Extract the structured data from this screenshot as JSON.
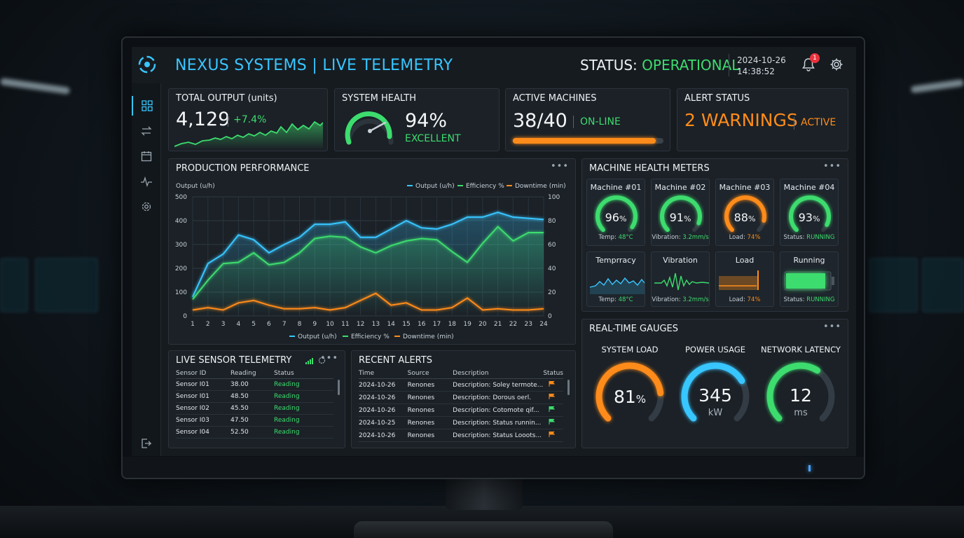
{
  "header": {
    "title": "NEXUS SYSTEMS | LIVE TELEMETRY",
    "status_label": "STATUS:",
    "status_value": "OPERATIONAL",
    "date": "2024-10-26",
    "time": "14:38:52",
    "notification_count": "1"
  },
  "colors": {
    "accent": "#38c6ff",
    "ok": "#3ddc6e",
    "warn": "#ff8c1a"
  },
  "sidebar": {
    "items": [
      {
        "icon": "dashboard-grid-icon"
      },
      {
        "icon": "transfer-arrows-icon"
      },
      {
        "icon": "calendar-icon"
      },
      {
        "icon": "pulse-icon"
      },
      {
        "icon": "settings-gear-icon"
      },
      {
        "icon": "logout-icon"
      }
    ]
  },
  "kpis": {
    "total_output": {
      "title": "TOTAL OUTPUT (units)",
      "value": "4,129",
      "delta": "+7.4%"
    },
    "system_health": {
      "title": "SYSTEM HEALTH",
      "value": "94%",
      "rating": "EXCELLENT",
      "level": 0.94
    },
    "active_machines": {
      "title": "ACTIVE MACHINES",
      "value": "38/40",
      "state": "ON-LINE",
      "progress": 0.95
    },
    "alert_status": {
      "title": "ALERT STATUS",
      "value": "2 WARNINGS",
      "state": "ACTIVE"
    }
  },
  "production": {
    "title": "PRODUCTION PERFORMANCE",
    "chart_data": {
      "type": "line",
      "ylabel": "Output (u/h)",
      "x": [
        1,
        2,
        3,
        4,
        5,
        6,
        7,
        8,
        9,
        10,
        11,
        12,
        13,
        14,
        15,
        16,
        17,
        18,
        19,
        20,
        21,
        22,
        23,
        24
      ],
      "ylim": [
        0,
        500
      ],
      "y2lim": [
        0,
        100
      ],
      "yticks": [
        "0",
        "100",
        "200",
        "300",
        "400",
        "500"
      ],
      "y2ticks": [
        "0",
        "20",
        "40",
        "60",
        "80",
        "100"
      ],
      "legend_position": "top-right",
      "series": [
        {
          "name": "Output (u/h)",
          "color": "#38c6ff",
          "axis": "left",
          "values": [
            80,
            220,
            260,
            340,
            320,
            265,
            300,
            330,
            385,
            385,
            395,
            330,
            330,
            365,
            400,
            370,
            365,
            385,
            415,
            415,
            435,
            415,
            410,
            405
          ]
        },
        {
          "name": "Efficiency %",
          "color": "#3ddc6e",
          "axis": "left",
          "values": [
            70,
            150,
            220,
            225,
            265,
            215,
            225,
            265,
            325,
            335,
            330,
            290,
            265,
            295,
            315,
            325,
            320,
            270,
            225,
            305,
            375,
            315,
            350,
            350
          ]
        },
        {
          "name": "Downtime (min)",
          "color": "#ff8c1a",
          "axis": "left",
          "values": [
            25,
            35,
            25,
            55,
            65,
            45,
            30,
            30,
            35,
            25,
            35,
            65,
            95,
            45,
            55,
            25,
            25,
            35,
            75,
            25,
            30,
            25,
            25,
            30
          ]
        }
      ]
    }
  },
  "machine_health": {
    "title": "MACHINE HEALTH METERS",
    "machines": [
      {
        "name": "Machine #01",
        "value": "96",
        "unit": "%",
        "level": 0.96,
        "color": "#3ddc6e",
        "detail_label": "Temp:",
        "detail_value": "48°C"
      },
      {
        "name": "Machine #02",
        "value": "91",
        "unit": "%",
        "level": 0.91,
        "color": "#3ddc6e",
        "detail_label": "Vibration:",
        "detail_value": "3.2mm/s"
      },
      {
        "name": "Machine #03",
        "value": "88",
        "unit": "%",
        "level": 0.88,
        "color": "#ff8c1a",
        "detail_label": "Load:",
        "detail_value": "74%"
      },
      {
        "name": "Machine #04",
        "value": "93",
        "unit": "%",
        "level": 0.93,
        "color": "#3ddc6e",
        "detail_label": "Status:",
        "detail_value": "RUNNING"
      }
    ],
    "sensors": [
      {
        "name": "Temprracy",
        "detail_label": "Temp:",
        "detail_value": "48°C"
      },
      {
        "name": "Vibration",
        "detail_label": "Vibration:",
        "detail_value": "3.2mm/s"
      },
      {
        "name": "Load",
        "detail_label": "Load:",
        "detail_value": "74%"
      },
      {
        "name": "Running",
        "detail_label": "Status:",
        "detail_value": "RUNNING"
      }
    ]
  },
  "sensor_telemetry": {
    "title": "LIVE SENSOR TELEMETRY",
    "columns": [
      "Sensor ID",
      "Reading",
      "Status"
    ],
    "rows": [
      [
        "Sensor I01",
        "38.00",
        "Reading"
      ],
      [
        "Sensor I01",
        "48.50",
        "Reading"
      ],
      [
        "Sensor I02",
        "45.50",
        "Reading"
      ],
      [
        "Sensor I03",
        "47.50",
        "Reading"
      ],
      [
        "Sensor I04",
        "52.50",
        "Reading"
      ]
    ]
  },
  "alerts": {
    "title": "RECENT ALERTS",
    "columns": [
      "Time",
      "Source",
      "Description",
      "Status"
    ],
    "rows": [
      {
        "time": "2024-10-26",
        "source": "Renones",
        "description": "Description: Soley termote...",
        "flag": "#ff8c1a"
      },
      {
        "time": "2024-10-26",
        "source": "Renones",
        "description": "Description: Dorous oerl.",
        "flag": "#ff8c1a"
      },
      {
        "time": "2024-10-26",
        "source": "Renones",
        "description": "Description: Cotomote qif...",
        "flag": "#3ddc6e"
      },
      {
        "time": "2024-10-25",
        "source": "Renones",
        "description": "Description: Status runnin...",
        "flag": "#3ddc6e"
      },
      {
        "time": "2024-10-26",
        "source": "Renones",
        "description": "Description: Status Looots...",
        "flag": "#ff8c1a"
      }
    ]
  },
  "gauges": {
    "title": "REAL-TIME GAUGES",
    "items": [
      {
        "label": "SYSTEM LOAD",
        "value": "81",
        "unit": "%",
        "level": 0.81,
        "color": "#ff8c1a"
      },
      {
        "label": "POWER USAGE",
        "value": "345",
        "unit": "kW",
        "level": 0.72,
        "color": "#38c6ff"
      },
      {
        "label": "NETWORK LATENCY",
        "value": "12",
        "unit": "ms",
        "level": 0.62,
        "color": "#3ddc6e"
      }
    ]
  }
}
